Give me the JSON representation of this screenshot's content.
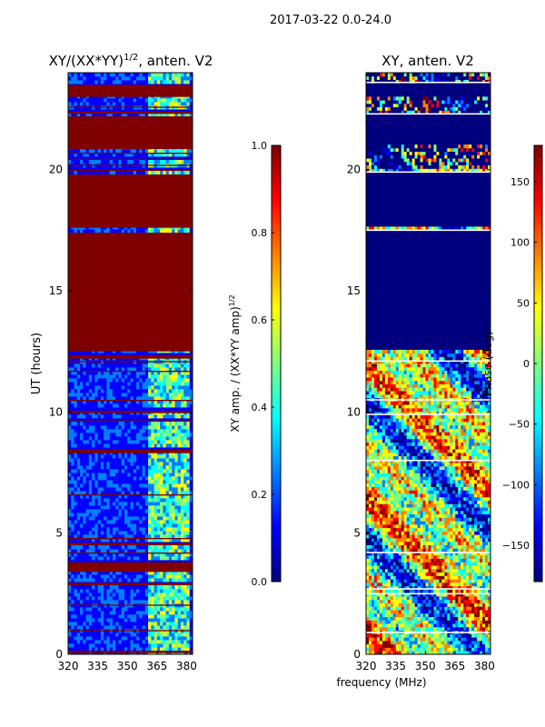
{
  "figure": {
    "suptitle": "2017-03-22 0.0-24.0",
    "xlabel": "frequency (MHz)"
  },
  "colors": {
    "colormap": [
      "#00007f",
      "#0000ff",
      "#007fff",
      "#00ffff",
      "#7fff7f",
      "#ffff00",
      "#ff7f00",
      "#ff0000",
      "#7f0000"
    ],
    "axes_edge": "#000000"
  },
  "chart_data": [
    {
      "type": "heatmap",
      "title_main": "XY/(XX*YY)",
      "title_exp": "1/2",
      "title_tail": ", anten. V2",
      "ylabel": "UT (hours)",
      "xlim": [
        320,
        383
      ],
      "ylim": [
        0,
        24
      ],
      "xticks": [
        320,
        335,
        350,
        365,
        380
      ],
      "yticks": [
        0,
        5,
        10,
        15,
        20
      ],
      "colorbar": {
        "label_main": "XY amp. / (XX*YY amp)",
        "label_exp": "1/2",
        "range": [
          0.0,
          1.0
        ],
        "ticks": [
          "0.0",
          "0.2",
          "0.4",
          "0.6",
          "0.8",
          "1.0"
        ],
        "tick_values": [
          0.0,
          0.2,
          0.4,
          0.6,
          0.8,
          1.0
        ]
      },
      "flagged_bands_hours": [
        [
          0.05,
          0.15
        ],
        [
          0.95,
          1.0
        ],
        [
          2.0,
          2.05
        ],
        [
          2.85,
          2.95
        ],
        [
          3.4,
          3.8
        ],
        [
          4.15,
          4.2
        ],
        [
          4.5,
          4.6
        ],
        [
          4.75,
          4.8
        ],
        [
          6.55,
          6.6
        ],
        [
          8.3,
          8.45
        ],
        [
          9.6,
          9.65
        ],
        [
          9.95,
          10.05
        ],
        [
          10.45,
          10.5
        ],
        [
          11.65,
          11.7
        ],
        [
          12.05,
          12.1
        ],
        [
          12.2,
          12.35
        ],
        [
          12.5,
          17.4
        ],
        [
          17.6,
          19.8
        ],
        [
          19.95,
          20.0
        ],
        [
          20.15,
          20.2
        ],
        [
          20.4,
          20.45
        ],
        [
          20.65,
          20.7
        ],
        [
          20.85,
          22.2
        ],
        [
          22.3,
          22.4
        ],
        [
          22.55,
          22.6
        ],
        [
          23.0,
          23.5
        ]
      ],
      "bright_channel_range_mhz": [
        360,
        382
      ]
    },
    {
      "type": "heatmap",
      "title": "XY, anten. V2",
      "ylabel": "",
      "xlim": [
        320,
        383
      ],
      "ylim": [
        0,
        24
      ],
      "xticks": [
        320,
        335,
        350,
        365,
        380
      ],
      "yticks": [
        0,
        5,
        10,
        15,
        20
      ],
      "colorbar": {
        "label": "Phase (deg)",
        "range": [
          -180,
          180
        ],
        "ticks": [
          "−150",
          "−100",
          "−50",
          "0",
          "50",
          "100",
          "150"
        ],
        "tick_values": [
          -150,
          -100,
          -50,
          0,
          50,
          100,
          150
        ]
      },
      "flagged_bands_hours": [
        [
          12.5,
          17.4
        ],
        [
          17.6,
          19.8
        ],
        [
          21.0,
          22.2
        ],
        [
          23.0,
          23.5
        ]
      ],
      "white_lines_hours": [
        0.9,
        2.5,
        2.7,
        4.2,
        8.0,
        9.9,
        10.5,
        12.1,
        17.5,
        19.9,
        22.3,
        23.6
      ]
    }
  ]
}
